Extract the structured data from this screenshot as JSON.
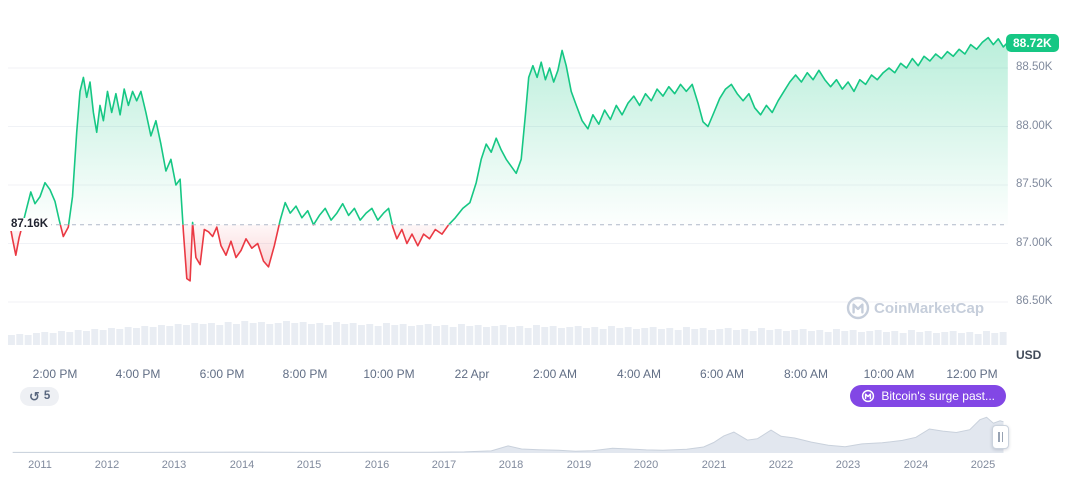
{
  "current_price": {
    "label": "88.72K",
    "value": 88.72,
    "color": "#16c784"
  },
  "open_price": {
    "label": "87.16K",
    "value": 87.16
  },
  "price_axis": {
    "unit": "USD"
  },
  "badges": {
    "history_count": "5",
    "news_label": "Bitcoin's surge past...",
    "news_color": "#8247e5"
  },
  "watermark": {
    "text": "CoinMarketCap"
  },
  "colors": {
    "up": "#16c784",
    "down": "#ea3943",
    "volume": "#e9edf3",
    "nav_fill": "#e2e7ef"
  },
  "chart_data": [
    {
      "type": "line",
      "title": "BTC/USD intraday price (21-22 Apr)",
      "ylabel": "USD (thousands)",
      "ylim": [
        86.3,
        89.0
      ],
      "baseline": 87.16,
      "last_price": 88.72,
      "grid": true,
      "legend": "none",
      "y_ticks": [
        {
          "label": "88.50K",
          "value": 88.5
        },
        {
          "label": "88.00K",
          "value": 88.0
        },
        {
          "label": "87.50K",
          "value": 87.5
        },
        {
          "label": "87.00K",
          "value": 87.0
        },
        {
          "label": "86.50K",
          "value": 86.5
        }
      ],
      "x_ticks": [
        {
          "label": "2:00 PM",
          "t": 14
        },
        {
          "label": "4:00 PM",
          "t": 16
        },
        {
          "label": "6:00 PM",
          "t": 18
        },
        {
          "label": "8:00 PM",
          "t": 20
        },
        {
          "label": "10:00 PM",
          "t": 22
        },
        {
          "label": "22 Apr",
          "t": 24
        },
        {
          "label": "2:00 AM",
          "t": 26
        },
        {
          "label": "4:00 AM",
          "t": 28
        },
        {
          "label": "6:00 AM",
          "t": 30
        },
        {
          "label": "8:00 AM",
          "t": 32
        },
        {
          "label": "10:00 AM",
          "t": 34
        },
        {
          "label": "12:00 PM",
          "t": 36
        }
      ],
      "points": [
        [
          12.9,
          87.2
        ],
        [
          12.98,
          87.04
        ],
        [
          13.06,
          86.9
        ],
        [
          13.14,
          87.05
        ],
        [
          13.22,
          87.16
        ],
        [
          13.32,
          87.3
        ],
        [
          13.42,
          87.44
        ],
        [
          13.52,
          87.34
        ],
        [
          13.64,
          87.4
        ],
        [
          13.76,
          87.52
        ],
        [
          13.88,
          87.46
        ],
        [
          14.0,
          87.36
        ],
        [
          14.1,
          87.2
        ],
        [
          14.2,
          87.06
        ],
        [
          14.32,
          87.14
        ],
        [
          14.42,
          87.4
        ],
        [
          14.52,
          87.95
        ],
        [
          14.6,
          88.3
        ],
        [
          14.68,
          88.42
        ],
        [
          14.76,
          88.25
        ],
        [
          14.84,
          88.38
        ],
        [
          14.92,
          88.12
        ],
        [
          15.0,
          87.95
        ],
        [
          15.08,
          88.18
        ],
        [
          15.16,
          88.05
        ],
        [
          15.26,
          88.3
        ],
        [
          15.36,
          88.12
        ],
        [
          15.46,
          88.28
        ],
        [
          15.56,
          88.1
        ],
        [
          15.66,
          88.32
        ],
        [
          15.76,
          88.18
        ],
        [
          15.86,
          88.3
        ],
        [
          15.96,
          88.22
        ],
        [
          16.06,
          88.3
        ],
        [
          16.18,
          88.12
        ],
        [
          16.3,
          87.92
        ],
        [
          16.42,
          88.05
        ],
        [
          16.54,
          87.85
        ],
        [
          16.66,
          87.62
        ],
        [
          16.78,
          87.72
        ],
        [
          16.9,
          87.5
        ],
        [
          17.0,
          87.55
        ],
        [
          17.08,
          87.1
        ],
        [
          17.16,
          86.7
        ],
        [
          17.24,
          86.68
        ],
        [
          17.3,
          87.18
        ],
        [
          17.38,
          86.88
        ],
        [
          17.48,
          86.82
        ],
        [
          17.58,
          87.12
        ],
        [
          17.68,
          87.1
        ],
        [
          17.78,
          87.06
        ],
        [
          17.88,
          87.14
        ],
        [
          17.98,
          86.98
        ],
        [
          18.1,
          86.9
        ],
        [
          18.22,
          87.02
        ],
        [
          18.34,
          86.88
        ],
        [
          18.46,
          86.94
        ],
        [
          18.58,
          87.04
        ],
        [
          18.72,
          86.96
        ],
        [
          18.86,
          87.0
        ],
        [
          19.0,
          86.85
        ],
        [
          19.12,
          86.8
        ],
        [
          19.26,
          86.98
        ],
        [
          19.4,
          87.2
        ],
        [
          19.52,
          87.35
        ],
        [
          19.64,
          87.26
        ],
        [
          19.78,
          87.32
        ],
        [
          19.92,
          87.22
        ],
        [
          20.06,
          87.28
        ],
        [
          20.2,
          87.16
        ],
        [
          20.34,
          87.24
        ],
        [
          20.48,
          87.3
        ],
        [
          20.62,
          87.2
        ],
        [
          20.76,
          87.26
        ],
        [
          20.9,
          87.34
        ],
        [
          21.04,
          87.24
        ],
        [
          21.18,
          87.3
        ],
        [
          21.32,
          87.2
        ],
        [
          21.46,
          87.26
        ],
        [
          21.6,
          87.3
        ],
        [
          21.74,
          87.2
        ],
        [
          21.88,
          87.26
        ],
        [
          22.0,
          87.3
        ],
        [
          22.1,
          87.14
        ],
        [
          22.2,
          87.04
        ],
        [
          22.32,
          87.12
        ],
        [
          22.44,
          87.0
        ],
        [
          22.56,
          87.08
        ],
        [
          22.7,
          86.98
        ],
        [
          22.84,
          87.08
        ],
        [
          22.98,
          87.04
        ],
        [
          23.12,
          87.12
        ],
        [
          23.28,
          87.08
        ],
        [
          23.44,
          87.16
        ],
        [
          23.6,
          87.22
        ],
        [
          23.78,
          87.3
        ],
        [
          23.95,
          87.35
        ],
        [
          24.1,
          87.52
        ],
        [
          24.22,
          87.72
        ],
        [
          24.34,
          87.85
        ],
        [
          24.46,
          87.78
        ],
        [
          24.58,
          87.9
        ],
        [
          24.7,
          87.8
        ],
        [
          24.82,
          87.72
        ],
        [
          24.94,
          87.66
        ],
        [
          25.06,
          87.6
        ],
        [
          25.18,
          87.72
        ],
        [
          25.28,
          88.1
        ],
        [
          25.36,
          88.42
        ],
        [
          25.46,
          88.52
        ],
        [
          25.56,
          88.42
        ],
        [
          25.66,
          88.55
        ],
        [
          25.76,
          88.4
        ],
        [
          25.86,
          88.5
        ],
        [
          25.96,
          88.38
        ],
        [
          26.06,
          88.48
        ],
        [
          26.16,
          88.65
        ],
        [
          26.26,
          88.52
        ],
        [
          26.38,
          88.3
        ],
        [
          26.5,
          88.18
        ],
        [
          26.64,
          88.05
        ],
        [
          26.78,
          87.98
        ],
        [
          26.9,
          88.1
        ],
        [
          27.04,
          88.02
        ],
        [
          27.18,
          88.14
        ],
        [
          27.32,
          88.06
        ],
        [
          27.46,
          88.18
        ],
        [
          27.6,
          88.1
        ],
        [
          27.74,
          88.2
        ],
        [
          27.88,
          88.26
        ],
        [
          28.02,
          88.18
        ],
        [
          28.16,
          88.28
        ],
        [
          28.3,
          88.22
        ],
        [
          28.44,
          88.32
        ],
        [
          28.58,
          88.26
        ],
        [
          28.72,
          88.34
        ],
        [
          28.86,
          88.28
        ],
        [
          29.0,
          88.36
        ],
        [
          29.14,
          88.3
        ],
        [
          29.28,
          88.36
        ],
        [
          29.42,
          88.2
        ],
        [
          29.54,
          88.04
        ],
        [
          29.66,
          88.0
        ],
        [
          29.8,
          88.12
        ],
        [
          29.94,
          88.24
        ],
        [
          30.08,
          88.32
        ],
        [
          30.22,
          88.36
        ],
        [
          30.36,
          88.28
        ],
        [
          30.5,
          88.22
        ],
        [
          30.64,
          88.28
        ],
        [
          30.78,
          88.16
        ],
        [
          30.92,
          88.1
        ],
        [
          31.06,
          88.18
        ],
        [
          31.2,
          88.12
        ],
        [
          31.34,
          88.22
        ],
        [
          31.48,
          88.3
        ],
        [
          31.62,
          88.38
        ],
        [
          31.76,
          88.44
        ],
        [
          31.9,
          88.38
        ],
        [
          32.04,
          88.46
        ],
        [
          32.18,
          88.4
        ],
        [
          32.32,
          88.48
        ],
        [
          32.46,
          88.4
        ],
        [
          32.6,
          88.34
        ],
        [
          32.74,
          88.4
        ],
        [
          32.88,
          88.32
        ],
        [
          33.02,
          88.38
        ],
        [
          33.16,
          88.3
        ],
        [
          33.3,
          88.4
        ],
        [
          33.44,
          88.36
        ],
        [
          33.58,
          88.44
        ],
        [
          33.72,
          88.4
        ],
        [
          33.86,
          88.46
        ],
        [
          34.0,
          88.5
        ],
        [
          34.14,
          88.46
        ],
        [
          34.28,
          88.54
        ],
        [
          34.42,
          88.5
        ],
        [
          34.56,
          88.58
        ],
        [
          34.7,
          88.52
        ],
        [
          34.84,
          88.6
        ],
        [
          34.98,
          88.56
        ],
        [
          35.12,
          88.62
        ],
        [
          35.26,
          88.58
        ],
        [
          35.4,
          88.64
        ],
        [
          35.54,
          88.6
        ],
        [
          35.68,
          88.66
        ],
        [
          35.82,
          88.62
        ],
        [
          35.96,
          88.7
        ],
        [
          36.1,
          88.66
        ],
        [
          36.24,
          88.72
        ],
        [
          36.38,
          88.76
        ],
        [
          36.5,
          88.7
        ],
        [
          36.62,
          88.75
        ],
        [
          36.74,
          88.68
        ],
        [
          36.85,
          88.72
        ]
      ]
    },
    {
      "type": "area",
      "title": "All-time price navigator (USD thousands)",
      "x_ticks": [
        "2011",
        "2012",
        "2013",
        "2014",
        "2015",
        "2016",
        "2017",
        "2018",
        "2019",
        "2020",
        "2021",
        "2022",
        "2023",
        "2024",
        "2025"
      ],
      "points": [
        [
          2010.6,
          0.2
        ],
        [
          2011.5,
          0.2
        ],
        [
          2012.5,
          0.3
        ],
        [
          2013.3,
          0.5
        ],
        [
          2013.95,
          1.1
        ],
        [
          2014.6,
          0.7
        ],
        [
          2015.2,
          0.4
        ],
        [
          2016.0,
          0.6
        ],
        [
          2016.8,
          0.9
        ],
        [
          2017.3,
          1.8
        ],
        [
          2017.7,
          4.5
        ],
        [
          2017.95,
          19.0
        ],
        [
          2018.15,
          10.0
        ],
        [
          2018.4,
          8.0
        ],
        [
          2018.7,
          6.8
        ],
        [
          2018.95,
          3.9
        ],
        [
          2019.2,
          5.0
        ],
        [
          2019.5,
          12.5
        ],
        [
          2019.75,
          10.0
        ],
        [
          2020.0,
          7.5
        ],
        [
          2020.25,
          6.5
        ],
        [
          2020.6,
          9.5
        ],
        [
          2020.85,
          16.0
        ],
        [
          2021.0,
          29.0
        ],
        [
          2021.15,
          48.0
        ],
        [
          2021.3,
          59.0
        ],
        [
          2021.5,
          36.0
        ],
        [
          2021.65,
          40.0
        ],
        [
          2021.85,
          65.0
        ],
        [
          2022.0,
          47.0
        ],
        [
          2022.2,
          42.0
        ],
        [
          2022.45,
          30.0
        ],
        [
          2022.7,
          21.0
        ],
        [
          2022.95,
          16.8
        ],
        [
          2023.2,
          25.0
        ],
        [
          2023.5,
          28.0
        ],
        [
          2023.8,
          35.0
        ],
        [
          2024.0,
          44.0
        ],
        [
          2024.2,
          68.0
        ],
        [
          2024.4,
          62.0
        ],
        [
          2024.6,
          58.0
        ],
        [
          2024.8,
          66.0
        ],
        [
          2024.95,
          95.0
        ],
        [
          2025.05,
          102.0
        ],
        [
          2025.15,
          85.0
        ],
        [
          2025.25,
          92.0
        ],
        [
          2025.3,
          88.7
        ]
      ]
    },
    {
      "type": "bar",
      "title": "volume (relative heights, px)",
      "values": [
        10,
        11,
        10,
        12,
        13,
        12,
        14,
        13,
        15,
        14,
        16,
        15,
        17,
        16,
        18,
        17,
        19,
        18,
        20,
        19,
        21,
        20,
        22,
        21,
        22,
        20,
        23,
        21,
        24,
        22,
        23,
        21,
        22,
        24,
        22,
        23,
        21,
        22,
        20,
        23,
        21,
        22,
        20,
        21,
        19,
        22,
        20,
        21,
        19,
        20,
        21,
        19,
        20,
        18,
        21,
        19,
        20,
        18,
        19,
        20,
        18,
        19,
        17,
        20,
        18,
        19,
        17,
        18,
        19,
        17,
        18,
        16,
        19,
        17,
        18,
        16,
        17,
        18,
        16,
        17,
        15,
        18,
        16,
        17,
        15,
        16,
        17,
        15,
        16,
        14,
        17,
        15,
        16,
        14,
        15,
        16,
        14,
        15,
        13,
        16,
        14,
        15,
        13,
        14,
        15,
        13,
        14,
        12,
        15,
        13,
        14,
        12,
        13,
        14,
        12,
        13,
        11,
        14,
        12,
        13
      ]
    }
  ]
}
